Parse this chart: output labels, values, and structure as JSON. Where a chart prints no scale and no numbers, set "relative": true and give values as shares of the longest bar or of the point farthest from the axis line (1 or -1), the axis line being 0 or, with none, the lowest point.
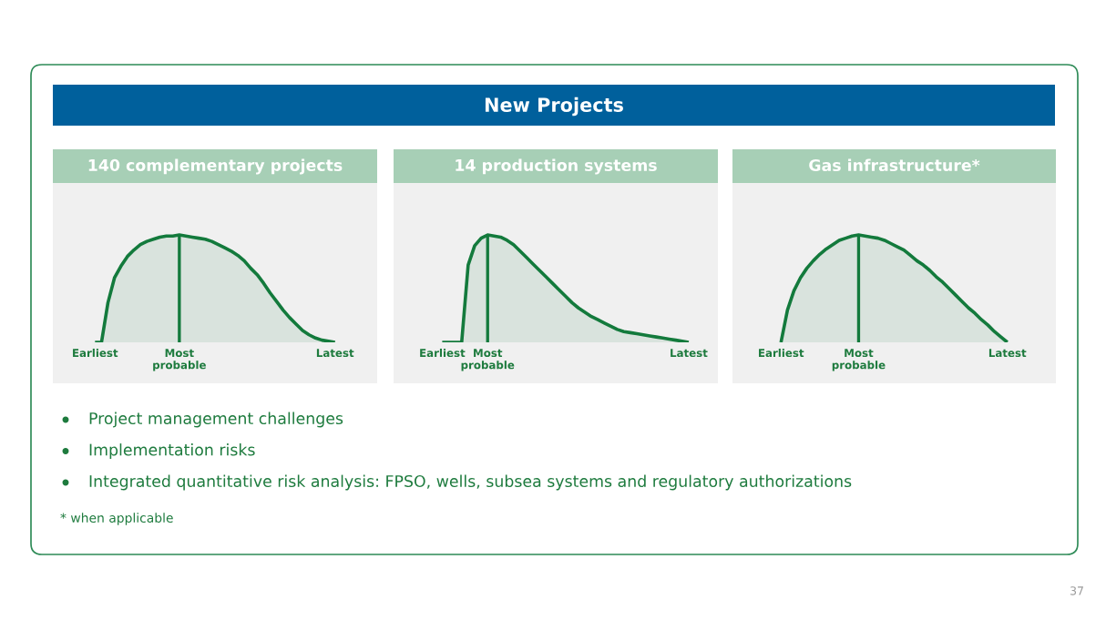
{
  "chart_data": [
    {
      "type": "other",
      "title": "New Projects",
      "annotations": [
        "Project management challenges",
        "Implementation risks",
        "Integrated quantitative risk analysis: FPSO, wells, subsea systems and regulatory authorizations",
        "* when applicable",
        "37"
      ]
    },
    {
      "type": "area",
      "title": "140 complementary projects",
      "relative": true,
      "tick_labels": "x",
      "categories": [
        null,
        null,
        null,
        null,
        null,
        null,
        "Earliest",
        null,
        null,
        null,
        null,
        null,
        null,
        null,
        null,
        null,
        null,
        null,
        null,
        "Most\nprobable",
        null,
        null,
        null,
        null,
        null,
        null,
        null,
        null,
        null,
        null,
        null,
        null,
        null,
        null,
        null,
        null,
        null,
        null,
        null,
        null,
        null,
        null,
        null,
        "Latest",
        null,
        null,
        null,
        null,
        null,
        null
      ],
      "series": [
        {
          "color": "#137a3c",
          "values": [
            null,
            null,
            null,
            null,
            null,
            null,
            0,
            0,
            0.37,
            0.6,
            0.71,
            0.8,
            0.86,
            0.91,
            0.94,
            0.96,
            0.98,
            0.99,
            0.99,
            1.0,
            0.99,
            0.98,
            0.97,
            0.96,
            0.94,
            0.91,
            0.88,
            0.85,
            0.81,
            0.76,
            0.69,
            0.63,
            0.55,
            0.46,
            0.38,
            0.3,
            0.23,
            0.17,
            0.11,
            0.07,
            0.04,
            0.02,
            0.01,
            0,
            null,
            null,
            null,
            null,
            null,
            null
          ]
        }
      ],
      "ref_lines": [
        {
          "axis": "x",
          "value": "Most\nprobable",
          "color": "#137a3c"
        }
      ]
    },
    {
      "type": "area",
      "title": "14 production systems",
      "relative": true,
      "tick_labels": "x",
      "categories": [
        null,
        null,
        null,
        null,
        null,
        null,
        null,
        "Earliest",
        null,
        null,
        null,
        null,
        null,
        null,
        "Most\nprobable",
        null,
        null,
        null,
        null,
        null,
        null,
        null,
        null,
        null,
        null,
        null,
        null,
        null,
        null,
        null,
        null,
        null,
        null,
        null,
        null,
        null,
        null,
        null,
        null,
        null,
        null,
        null,
        null,
        null,
        null,
        "Latest",
        null,
        null,
        null,
        null
      ],
      "series": [
        {
          "color": "#137a3c",
          "values": [
            null,
            null,
            null,
            null,
            null,
            null,
            null,
            0,
            0,
            0,
            0,
            0.72,
            0.9,
            0.97,
            1.0,
            0.99,
            0.98,
            0.95,
            0.91,
            0.85,
            0.79,
            0.73,
            0.67,
            0.61,
            0.55,
            0.49,
            0.43,
            0.37,
            0.32,
            0.28,
            0.24,
            0.21,
            0.18,
            0.15,
            0.12,
            0.1,
            0.09,
            0.08,
            0.07,
            0.06,
            0.05,
            0.04,
            0.03,
            0.02,
            0.01,
            0,
            null,
            null,
            null,
            null
          ]
        }
      ],
      "ref_lines": [
        {
          "axis": "x",
          "value": "Most\nprobable",
          "color": "#137a3c"
        }
      ]
    },
    {
      "type": "area",
      "title": "Gas infrastructure*",
      "relative": true,
      "tick_labels": "x",
      "categories": [
        null,
        null,
        null,
        null,
        null,
        null,
        null,
        "Earliest",
        null,
        null,
        null,
        null,
        null,
        null,
        null,
        null,
        null,
        null,
        null,
        "Most\nprobable",
        null,
        null,
        null,
        null,
        null,
        null,
        null,
        null,
        null,
        null,
        null,
        null,
        null,
        null,
        null,
        null,
        null,
        null,
        null,
        null,
        null,
        null,
        "Latest",
        null,
        null,
        null,
        null,
        null,
        null,
        null
      ],
      "series": [
        {
          "color": "#137a3c",
          "values": [
            null,
            null,
            null,
            null,
            null,
            null,
            null,
            0,
            0.3,
            0.48,
            0.6,
            0.69,
            0.76,
            0.82,
            0.87,
            0.91,
            0.95,
            0.97,
            0.99,
            1.0,
            0.99,
            0.98,
            0.97,
            0.95,
            0.92,
            0.89,
            0.86,
            0.81,
            0.76,
            0.72,
            0.67,
            0.61,
            0.56,
            0.5,
            0.44,
            0.38,
            0.32,
            0.27,
            0.21,
            0.16,
            0.1,
            0.05,
            0,
            null,
            null,
            null,
            null,
            null,
            null,
            null
          ]
        }
      ],
      "ref_lines": [
        {
          "axis": "x",
          "value": "Most\nprobable",
          "color": "#137a3c"
        }
      ]
    }
  ]
}
